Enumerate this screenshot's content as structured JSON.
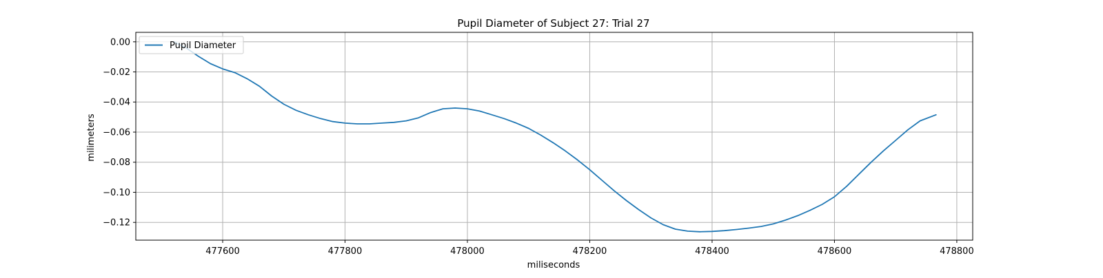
{
  "chart_data": {
    "type": "line",
    "title": "Pupil Diameter of Subject 27: Trial 27",
    "xlabel": "miliseconds",
    "ylabel": "milimeters",
    "xlim": [
      477458,
      478826
    ],
    "ylim": [
      -0.1318,
      0.0063
    ],
    "xticks": [
      477600,
      477800,
      478000,
      478200,
      478400,
      478600,
      478800
    ],
    "yticks": [
      0.0,
      -0.02,
      -0.04,
      -0.06,
      -0.08,
      -0.1,
      -0.12
    ],
    "xtick_labels": [
      "477600",
      "477800",
      "478000",
      "478200",
      "478400",
      "478600",
      "478800"
    ],
    "ytick_labels": [
      "0.00",
      "−0.02",
      "−0.04",
      "−0.06",
      "−0.08",
      "−0.10",
      "−0.12"
    ],
    "grid": true,
    "legend_position": "upper-left",
    "series": [
      {
        "name": "Pupil Diameter",
        "color": "#1f77b4",
        "x": [
          477520,
          477540,
          477560,
          477580,
          477600,
          477620,
          477640,
          477660,
          477680,
          477700,
          477720,
          477740,
          477760,
          477780,
          477800,
          477820,
          477840,
          477860,
          477880,
          477900,
          477920,
          477940,
          477960,
          477980,
          478000,
          478020,
          478040,
          478060,
          478080,
          478100,
          478120,
          478140,
          478160,
          478180,
          478200,
          478220,
          478240,
          478260,
          478280,
          478300,
          478320,
          478340,
          478360,
          478380,
          478400,
          478420,
          478440,
          478460,
          478480,
          478500,
          478520,
          478540,
          478560,
          478580,
          478600,
          478620,
          478640,
          478660,
          478680,
          478700,
          478720,
          478740,
          478766
        ],
        "y": [
          0.0,
          -0.004,
          -0.0095,
          -0.0145,
          -0.018,
          -0.0205,
          -0.0245,
          -0.0295,
          -0.036,
          -0.0415,
          -0.0455,
          -0.0485,
          -0.051,
          -0.053,
          -0.054,
          -0.0545,
          -0.0545,
          -0.054,
          -0.0535,
          -0.0525,
          -0.0505,
          -0.047,
          -0.0445,
          -0.044,
          -0.0445,
          -0.046,
          -0.0485,
          -0.051,
          -0.054,
          -0.0575,
          -0.062,
          -0.067,
          -0.0725,
          -0.0785,
          -0.085,
          -0.092,
          -0.099,
          -0.1055,
          -0.1115,
          -0.117,
          -0.1215,
          -0.1245,
          -0.1258,
          -0.1262,
          -0.126,
          -0.1255,
          -0.1247,
          -0.1238,
          -0.1227,
          -0.121,
          -0.1185,
          -0.1155,
          -0.112,
          -0.108,
          -0.103,
          -0.096,
          -0.088,
          -0.08,
          -0.0725,
          -0.0655,
          -0.0585,
          -0.0525,
          -0.0485
        ]
      }
    ]
  }
}
